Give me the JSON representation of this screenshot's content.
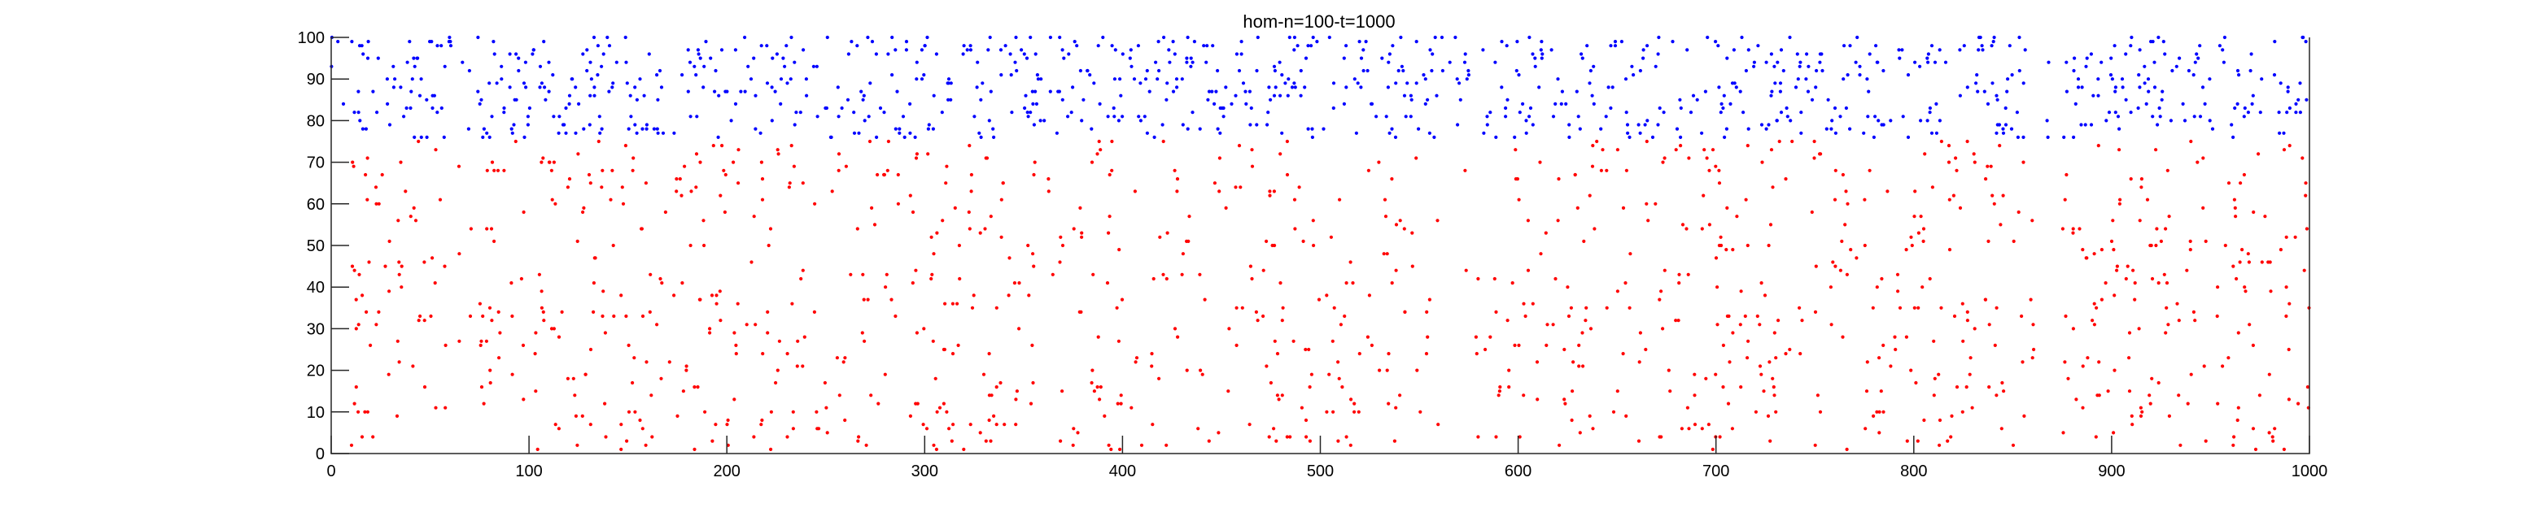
{
  "chart_data": {
    "type": "scatter",
    "title": "hom-n=100-t=1000",
    "xlabel": "",
    "ylabel": "",
    "xlim": [
      0,
      1000
    ],
    "ylim": [
      0,
      100
    ],
    "xticks": [
      0,
      100,
      200,
      300,
      400,
      500,
      600,
      700,
      800,
      900,
      1000
    ],
    "yticks": [
      0,
      10,
      20,
      30,
      40,
      50,
      60,
      70,
      80,
      90,
      100
    ],
    "grid": false,
    "legend": "none",
    "series": [
      {
        "color": "#ff0000",
        "y_range": [
          1,
          75
        ],
        "marker": "dot",
        "density_profile": [
          {
            "x": [
              0,
              10
            ],
            "relative_density": 0.6
          },
          {
            "x": [
              10,
              60
            ],
            "relative_density": 1.0
          },
          {
            "x": [
              60,
              75
            ],
            "relative_density": 0.3
          },
          {
            "x": [
              75,
              560
            ],
            "relative_density": 1.0
          },
          {
            "x": [
              560,
              590
            ],
            "relative_density": 0.5
          },
          {
            "x": [
              590,
              860
            ],
            "relative_density": 1.0
          },
          {
            "x": [
              860,
              875
            ],
            "relative_density": 0.2
          },
          {
            "x": [
              875,
              1000
            ],
            "relative_density": 1.0
          }
        ]
      },
      {
        "color": "#0000ff",
        "y_range": [
          76,
          100
        ],
        "marker": "dot",
        "density_profile": [
          {
            "x": [
              0,
              10
            ],
            "relative_density": 0.6
          },
          {
            "x": [
              10,
              60
            ],
            "relative_density": 1.0
          },
          {
            "x": [
              60,
              75
            ],
            "relative_density": 0.3
          },
          {
            "x": [
              75,
              560
            ],
            "relative_density": 1.0
          },
          {
            "x": [
              560,
              590
            ],
            "relative_density": 0.5
          },
          {
            "x": [
              590,
              860
            ],
            "relative_density": 1.0
          },
          {
            "x": [
              860,
              875
            ],
            "relative_density": 0.2
          },
          {
            "x": [
              875,
              1000
            ],
            "relative_density": 1.0
          }
        ]
      }
    ]
  }
}
